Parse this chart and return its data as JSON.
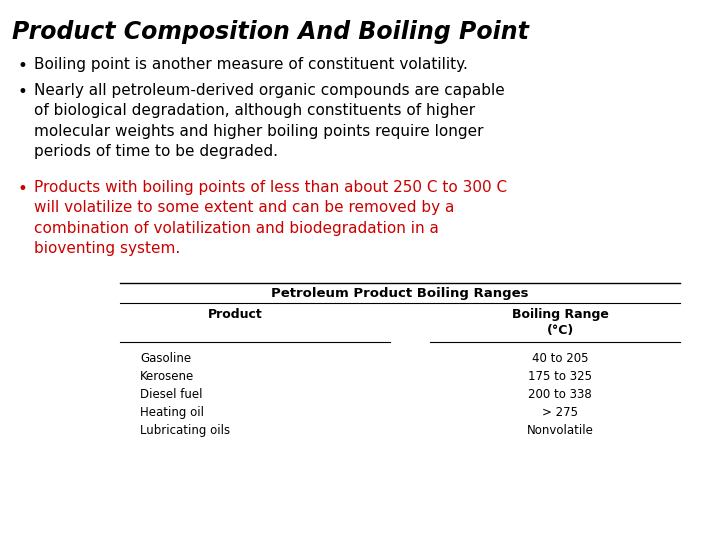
{
  "title": "Product Composition And Boiling Point",
  "title_fontsize": 17,
  "title_style": "italic",
  "title_weight": "bold",
  "background_color": "#ffffff",
  "text_color": "#000000",
  "bullet1_color": "#000000",
  "bullet2_color": "#000000",
  "bullet3_color": "#cc0000",
  "bullet1": "Boiling point is another measure of constituent volatility.",
  "bullet2_lines": "Nearly all petroleum-derived organic compounds are capable\nof biological degradation, although constituents of higher\nmolecular weights and higher boiling points require longer\nperiods of time to be degraded.",
  "bullet3_lines": "Products with boiling points of less than about 250 C to 300 C\nwill volatilize to some extent and can be removed by a\ncombination of volatilization and biodegradation in a\nbioventing system.",
  "table_title": "Petroleum Product Boiling Ranges",
  "table_col1_header": "Product",
  "table_col2_header": "Boiling Range\n(°C)",
  "table_products": [
    "Gasoline",
    "Kerosene",
    "Diesel fuel",
    "Heating oil",
    "Lubricating oils"
  ],
  "table_ranges": [
    "40 to 205",
    "175 to 325",
    "200 to 338",
    "> 275",
    "Nonvolatile"
  ],
  "body_fontsize": 11,
  "table_fontsize": 9
}
